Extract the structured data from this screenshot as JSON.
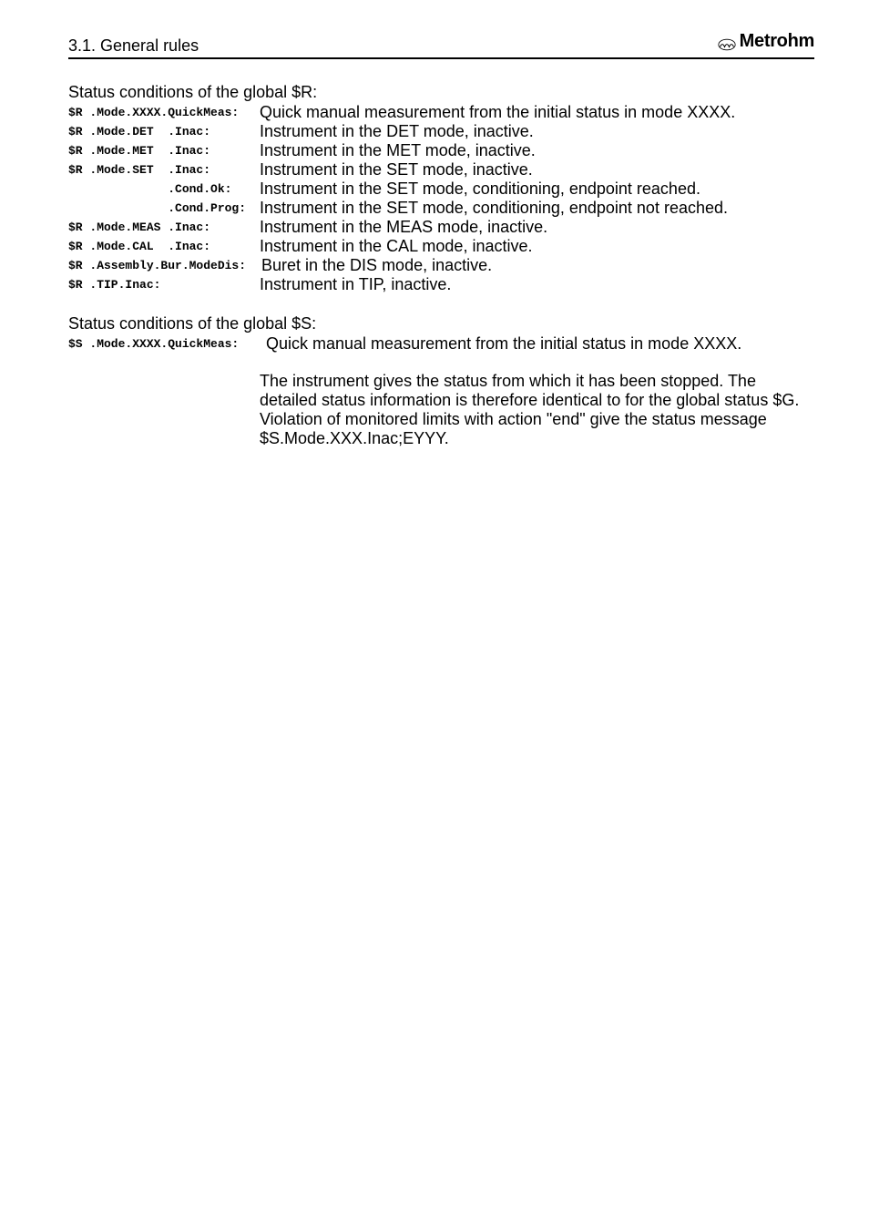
{
  "header": {
    "section": "3.1. General rules",
    "brand": "Metrohm"
  },
  "blockR": {
    "title": "Status conditions of the global $R:",
    "lines": [
      {
        "code": "$R .Mode.XXXX.QuickMeas:",
        "codeWidth": 210,
        "desc": "Quick manual measurement from the initial status in mode XXXX."
      },
      {
        "code": "$R .Mode.DET  .Inac:",
        "codeWidth": 210,
        "desc": "Instrument in the DET mode, inactive."
      },
      {
        "code": "$R .Mode.MET  .Inac:",
        "codeWidth": 210,
        "desc": "Instrument in the MET mode, inactive."
      },
      {
        "code": "$R .Mode.SET  .Inac:",
        "codeWidth": 210,
        "desc": "Instrument in the SET mode, inactive."
      },
      {
        "code": "              .Cond.Ok:",
        "codeWidth": 210,
        "desc": "Instrument in the SET mode, conditioning, endpoint reached."
      },
      {
        "code": "              .Cond.Prog:",
        "codeWidth": 210,
        "desc": "Instrument in the SET mode, conditioning, endpoint not reached."
      },
      {
        "code": "$R .Mode.MEAS .Inac:",
        "codeWidth": 210,
        "desc": "Instrument in the MEAS mode, inactive."
      },
      {
        "code": "$R .Mode.CAL  .Inac:",
        "codeWidth": 210,
        "desc": "Instrument in the CAL mode, inactive."
      },
      {
        "code": "$R .Assembly.Bur.ModeDis: ",
        "codeWidth": 212,
        "desc": "Buret in the DIS mode, inactive."
      },
      {
        "code": "$R .TIP.Inac:",
        "codeWidth": 210,
        "desc": "Instrument in TIP, inactive."
      }
    ]
  },
  "blockS": {
    "title": "Status conditions of the global $S:",
    "lines": [
      {
        "code": "$S .Mode.XXXX.QuickMeas:",
        "codeWidth": 217,
        "desc": "Quick manual measurement from the initial status in mode XXXX."
      }
    ],
    "para1": "The instrument gives the status from which it has been stopped. The detailed status information is therefore identical to for the global status $G.",
    "para2": "Violation of monitored limits with action \"end\" give the status message $S.Mode.XXX.Inac;EYYY."
  },
  "style": {
    "textColor": "#000000",
    "bgColor": "#ffffff",
    "codeFontSize": 13,
    "descFontSize": 18
  }
}
